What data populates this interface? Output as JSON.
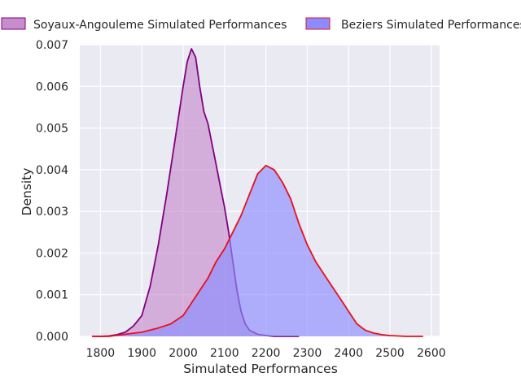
{
  "chart_data": {
    "type": "area",
    "xlabel": "Simulated Performances",
    "ylabel": "Density",
    "xlim": [
      1750,
      2620
    ],
    "ylim": [
      0,
      0.007
    ],
    "xticks": [
      1800,
      1900,
      2000,
      2100,
      2200,
      2300,
      2400,
      2500,
      2600
    ],
    "yticks": [
      0,
      0.001,
      0.002,
      0.003,
      0.004,
      0.005,
      0.006,
      0.007
    ],
    "ytick_labels": [
      "0.000",
      "0.001",
      "0.002",
      "0.003",
      "0.004",
      "0.005",
      "0.006",
      "0.007"
    ],
    "grid": true,
    "legend_position": "top, outside plot",
    "series": [
      {
        "name": "Soyaux-Angouleme Simulated Performances",
        "fill": "#c88dcc",
        "fill_opacity": 0.65,
        "line": "#800080",
        "x": [
          1780,
          1800,
          1820,
          1840,
          1860,
          1880,
          1900,
          1920,
          1940,
          1960,
          1980,
          2000,
          2010,
          2020,
          2030,
          2040,
          2050,
          2060,
          2070,
          2080,
          2090,
          2100,
          2110,
          2120,
          2130,
          2140,
          2150,
          2160,
          2170,
          2180,
          2200,
          2220,
          2240,
          2260,
          2280
        ],
        "y": [
          0.0,
          0.0,
          1e-05,
          4e-05,
          0.0001,
          0.00025,
          0.0005,
          0.0012,
          0.0022,
          0.0034,
          0.0047,
          0.006,
          0.0066,
          0.0069,
          0.0067,
          0.006,
          0.0054,
          0.0051,
          0.0046,
          0.0041,
          0.0036,
          0.0031,
          0.0025,
          0.0018,
          0.0011,
          0.0006,
          0.0003,
          0.00015,
          0.0001,
          5e-05,
          2e-05,
          0.0,
          0.0,
          0.0,
          0.0
        ]
      },
      {
        "name": "Beziers Simulated Performances",
        "fill": "#8c8cff",
        "fill_opacity": 0.65,
        "line": "#e8101c",
        "x": [
          1780,
          1820,
          1860,
          1900,
          1940,
          1970,
          2000,
          2020,
          2040,
          2060,
          2080,
          2100,
          2120,
          2140,
          2160,
          2180,
          2200,
          2220,
          2240,
          2260,
          2280,
          2300,
          2320,
          2340,
          2360,
          2380,
          2400,
          2420,
          2440,
          2460,
          2480,
          2500,
          2520,
          2540,
          2560,
          2580
        ],
        "y": [
          0.0,
          0.0,
          5e-05,
          0.0001,
          0.0002,
          0.0003,
          0.0005,
          0.0008,
          0.0011,
          0.0014,
          0.0018,
          0.0021,
          0.0025,
          0.0029,
          0.0034,
          0.0039,
          0.0041,
          0.004,
          0.0037,
          0.0033,
          0.0027,
          0.0022,
          0.0018,
          0.0015,
          0.0012,
          0.0009,
          0.0006,
          0.0003,
          0.00015,
          8e-05,
          4e-05,
          2e-05,
          1e-05,
          0.0,
          0.0,
          0.0
        ]
      }
    ]
  }
}
